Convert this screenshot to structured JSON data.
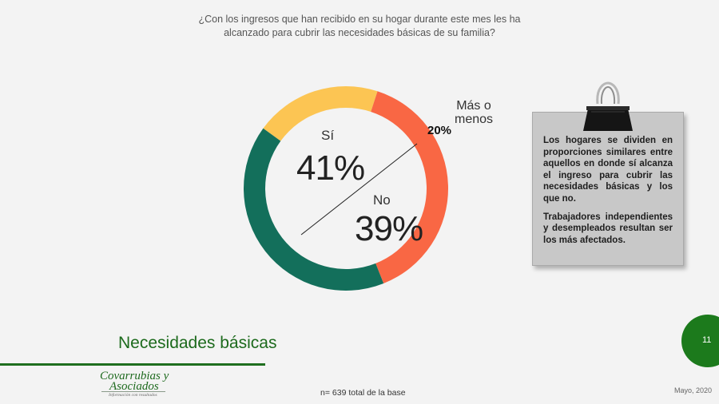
{
  "question": "¿Con los ingresos que han recibido en su hogar durante este mes les ha alcanzado para cubrir las necesidades básicas de su familia?",
  "chart_data": {
    "type": "pie",
    "title": "",
    "slices": [
      {
        "label": "Más o menos",
        "value": 20,
        "display": "20%",
        "color": "#fcc553"
      },
      {
        "label": "No",
        "value": 39,
        "display": "39%",
        "color": "#f96744"
      },
      {
        "label": "Sí",
        "value": 41,
        "display": "41%",
        "color": "#136f5b"
      }
    ],
    "donut": true
  },
  "labels": {
    "si_name": "Sí",
    "si_pct": "41%",
    "no_name": "No",
    "no_pct": "39%",
    "mas_name": "Más o menos",
    "mas_pct": "20%"
  },
  "note": {
    "paragraph1": "Los hogares se dividen en proporciones similares entre aquellos en donde sí alcanza el ingreso para cubrir las necesidades básicas y los que no.",
    "paragraph2": "Trabajadores independientes y desempleados resultan ser los más afectados."
  },
  "section_title": "Necesidades básicas",
  "page_number": "11",
  "logo": {
    "line1": "Covarrubias y",
    "line2": "Asociados",
    "tagline": "Información con resultados"
  },
  "base_note": "n= 639 total de la base",
  "date": "Mayo, 2020",
  "colors": {
    "accent_green": "#1c7a1c",
    "note_bg": "#c8c8c8",
    "background": "#f3f3f3"
  }
}
